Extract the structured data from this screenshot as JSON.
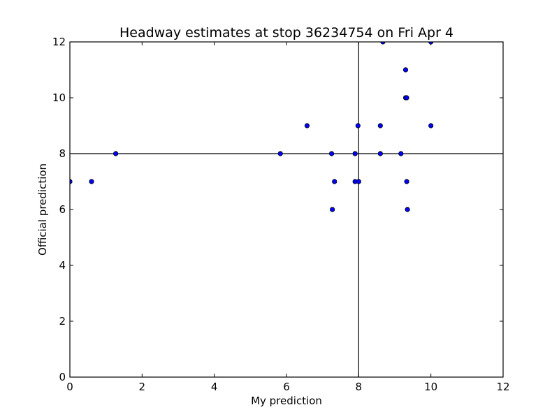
{
  "chart_data": {
    "type": "scatter",
    "title": "Headway estimates at stop 36234754 on Fri Apr 4",
    "xlabel": "My prediction",
    "ylabel": "Official prediction",
    "xlim": [
      0,
      12
    ],
    "ylim": [
      0,
      12
    ],
    "xticks": [
      0,
      2,
      4,
      6,
      8,
      10,
      12
    ],
    "yticks": [
      0,
      2,
      4,
      6,
      8,
      10,
      12
    ],
    "reference_lines": {
      "x": 8,
      "y": 8
    },
    "grid": false,
    "marker_color": "#0000ff",
    "points": [
      {
        "x": 0.0,
        "y": 7
      },
      {
        "x": 0.6,
        "y": 7
      },
      {
        "x": 1.27,
        "y": 8
      },
      {
        "x": 5.83,
        "y": 8
      },
      {
        "x": 6.57,
        "y": 9
      },
      {
        "x": 7.25,
        "y": 8
      },
      {
        "x": 7.27,
        "y": 6
      },
      {
        "x": 7.33,
        "y": 7
      },
      {
        "x": 7.9,
        "y": 8
      },
      {
        "x": 7.9,
        "y": 7
      },
      {
        "x": 7.98,
        "y": 9
      },
      {
        "x": 8.0,
        "y": 7
      },
      {
        "x": 8.6,
        "y": 9
      },
      {
        "x": 8.6,
        "y": 8
      },
      {
        "x": 8.67,
        "y": 12
      },
      {
        "x": 9.17,
        "y": 8
      },
      {
        "x": 9.3,
        "y": 11
      },
      {
        "x": 9.3,
        "y": 10
      },
      {
        "x": 9.33,
        "y": 10
      },
      {
        "x": 9.33,
        "y": 7
      },
      {
        "x": 9.35,
        "y": 6
      },
      {
        "x": 10.0,
        "y": 12
      },
      {
        "x": 10.0,
        "y": 9
      }
    ]
  }
}
